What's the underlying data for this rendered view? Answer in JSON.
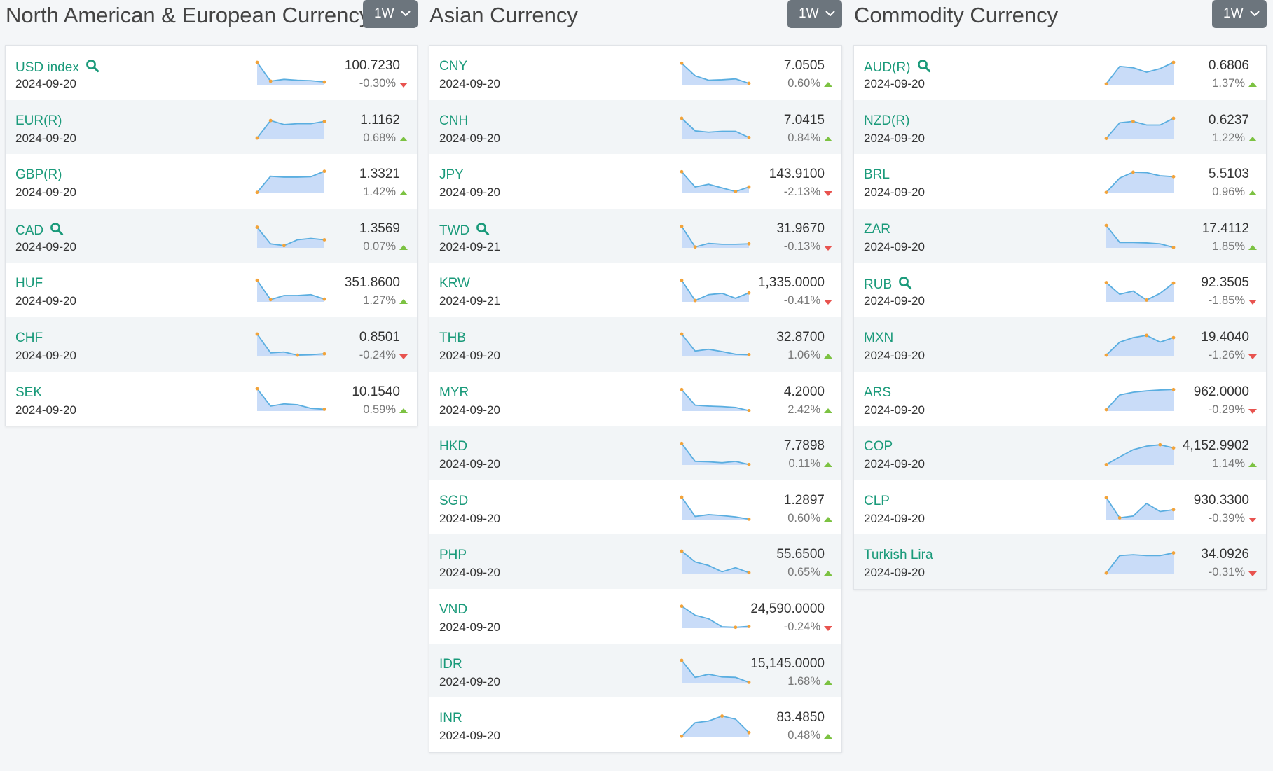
{
  "colors": {
    "link": "#1a9a7a",
    "up": "#7cc242",
    "down": "#e8534f",
    "button": "#6c757d",
    "spark_line": "#5aaee0",
    "spark_fill": "#c9dcf8",
    "spark_dot": "#f2a33a"
  },
  "columns": [
    {
      "title": "North American & European Currency",
      "period": "1W",
      "rows": [
        {
          "name": "USD index",
          "search": true,
          "date": "2024-09-20",
          "value": "100.7230",
          "change": "-0.30%",
          "dir": "down",
          "spark": [
            5,
            0.8,
            1.2,
            1,
            0.9,
            0.6
          ],
          "spark_marks": [
            0,
            1,
            5
          ]
        },
        {
          "name": "EUR(R)",
          "search": false,
          "date": "2024-09-20",
          "value": "1.1162",
          "change": "0.68%",
          "dir": "up",
          "spark": [
            0.3,
            4.2,
            3.3,
            3.5,
            3.5,
            4
          ],
          "spark_marks": [
            0,
            1,
            5
          ]
        },
        {
          "name": "GBP(R)",
          "search": false,
          "date": "2024-09-20",
          "value": "1.3321",
          "change": "1.42%",
          "dir": "up",
          "spark": [
            0.2,
            3.8,
            3.6,
            3.6,
            3.7,
            4.9
          ],
          "spark_marks": [
            0,
            5
          ]
        },
        {
          "name": "CAD",
          "search": true,
          "date": "2024-09-20",
          "value": "1.3569",
          "change": "0.07%",
          "dir": "up",
          "spark": [
            4.6,
            0.9,
            0.5,
            1.8,
            2.1,
            1.8
          ],
          "spark_marks": [
            0,
            2,
            5
          ]
        },
        {
          "name": "HUF",
          "search": false,
          "date": "2024-09-20",
          "value": "351.8600",
          "change": "1.27%",
          "dir": "up",
          "spark": [
            4.8,
            0.5,
            1.4,
            1.4,
            1.6,
            0.6
          ],
          "spark_marks": [
            0,
            1,
            5
          ]
        },
        {
          "name": "CHF",
          "search": false,
          "date": "2024-09-20",
          "value": "0.8501",
          "change": "-0.24%",
          "dir": "down",
          "spark": [
            5,
            0.8,
            1,
            0.3,
            0.4,
            0.6
          ],
          "spark_marks": [
            0,
            3,
            5
          ]
        },
        {
          "name": "SEK",
          "search": false,
          "date": "2024-09-20",
          "value": "10.1540",
          "change": "0.59%",
          "dir": "up",
          "spark": [
            5,
            1.1,
            1.6,
            1.4,
            0.6,
            0.4
          ],
          "spark_marks": [
            0,
            5
          ]
        }
      ]
    },
    {
      "title": "Asian Currency",
      "period": "1W",
      "rows": [
        {
          "name": "CNY",
          "search": false,
          "date": "2024-09-20",
          "value": "7.0505",
          "change": "0.60%",
          "dir": "up",
          "spark": [
            4.8,
            2,
            1,
            1.1,
            1.3,
            0.3
          ],
          "spark_marks": [
            0,
            5
          ]
        },
        {
          "name": "CNH",
          "search": false,
          "date": "2024-09-20",
          "value": "7.0415",
          "change": "0.84%",
          "dir": "up",
          "spark": [
            4.7,
            1.9,
            1.6,
            1.8,
            1.8,
            0.4
          ],
          "spark_marks": [
            0,
            5
          ]
        },
        {
          "name": "JPY",
          "search": false,
          "date": "2024-09-20",
          "value": "143.9100",
          "change": "-2.13%",
          "dir": "down",
          "spark": [
            4.8,
            1.4,
            2,
            1.2,
            0.4,
            1.4
          ],
          "spark_marks": [
            0,
            4,
            5
          ]
        },
        {
          "name": "TWD",
          "search": true,
          "date": "2024-09-21",
          "value": "31.9670",
          "change": "-0.13%",
          "dir": "down",
          "spark": [
            4.8,
            0.2,
            1,
            0.8,
            0.8,
            0.9
          ],
          "spark_marks": [
            0,
            1,
            5
          ]
        },
        {
          "name": "KRW",
          "search": false,
          "date": "2024-09-21",
          "value": "1,335.0000",
          "change": "-0.41%",
          "dir": "down",
          "spark": [
            4.8,
            0.3,
            1.6,
            1.9,
            0.8,
            2
          ],
          "spark_marks": [
            0,
            1,
            5
          ]
        },
        {
          "name": "THB",
          "search": false,
          "date": "2024-09-20",
          "value": "32.8700",
          "change": "1.06%",
          "dir": "up",
          "spark": [
            5,
            1.2,
            1.6,
            1.1,
            0.5,
            0.4
          ],
          "spark_marks": [
            0,
            5
          ]
        },
        {
          "name": "MYR",
          "search": false,
          "date": "2024-09-20",
          "value": "4.2000",
          "change": "2.42%",
          "dir": "up",
          "spark": [
            4.8,
            1.3,
            1.1,
            1,
            0.8,
            0.1
          ],
          "spark_marks": [
            0,
            5
          ]
        },
        {
          "name": "HKD",
          "search": false,
          "date": "2024-09-20",
          "value": "7.7898",
          "change": "0.11%",
          "dir": "up",
          "spark": [
            4.8,
            0.8,
            0.7,
            0.5,
            0.8,
            0.1
          ],
          "spark_marks": [
            0,
            5
          ]
        },
        {
          "name": "SGD",
          "search": false,
          "date": "2024-09-20",
          "value": "1.2897",
          "change": "0.60%",
          "dir": "up",
          "spark": [
            5,
            0.7,
            1.1,
            0.9,
            0.6,
            0.1
          ],
          "spark_marks": [
            0,
            5
          ]
        },
        {
          "name": "PHP",
          "search": false,
          "date": "2024-09-20",
          "value": "55.6500",
          "change": "0.65%",
          "dir": "up",
          "spark": [
            5,
            2.6,
            1.8,
            0.4,
            1.3,
            0.2
          ],
          "spark_marks": [
            0,
            5
          ]
        },
        {
          "name": "VND",
          "search": false,
          "date": "2024-09-20",
          "value": "24,590.0000",
          "change": "-0.24%",
          "dir": "down",
          "spark": [
            4.9,
            2.9,
            2.1,
            0.3,
            0.2,
            0.4
          ],
          "spark_marks": [
            0,
            4,
            5
          ]
        },
        {
          "name": "IDR",
          "search": false,
          "date": "2024-09-20",
          "value": "15,145.0000",
          "change": "1.68%",
          "dir": "up",
          "spark": [
            5,
            1.2,
            1.9,
            1.3,
            1.2,
            0.1
          ],
          "spark_marks": [
            0,
            5
          ]
        },
        {
          "name": "INR",
          "search": false,
          "date": "2024-09-20",
          "value": "83.4850",
          "change": "0.48%",
          "dir": "up",
          "spark": [
            0.1,
            3.1,
            3.5,
            4.6,
            3.9,
            0.9
          ],
          "spark_marks": [
            0,
            3,
            5
          ]
        }
      ]
    },
    {
      "title": "Commodity Currency",
      "period": "1W",
      "rows": [
        {
          "name": "AUD(R)",
          "search": true,
          "date": "2024-09-20",
          "value": "0.6806",
          "change": "1.37%",
          "dir": "up",
          "spark": [
            0.2,
            4.1,
            3.8,
            2.8,
            3.6,
            5
          ],
          "spark_marks": [
            0,
            5
          ]
        },
        {
          "name": "NZD(R)",
          "search": false,
          "date": "2024-09-20",
          "value": "0.6237",
          "change": "1.22%",
          "dir": "up",
          "spark": [
            0.2,
            3.7,
            4,
            3.2,
            3.2,
            4.7
          ],
          "spark_marks": [
            0,
            2,
            5
          ]
        },
        {
          "name": "BRL",
          "search": false,
          "date": "2024-09-20",
          "value": "5.5103",
          "change": "0.96%",
          "dir": "up",
          "spark": [
            0.2,
            3.4,
            4.7,
            4.6,
            3.9,
            3.7
          ],
          "spark_marks": [
            0,
            2,
            5
          ]
        },
        {
          "name": "ZAR",
          "search": false,
          "date": "2024-09-20",
          "value": "17.4112",
          "change": "1.85%",
          "dir": "up",
          "spark": [
            5,
            1.2,
            1.2,
            1.1,
            0.9,
            0.1
          ],
          "spark_marks": [
            0,
            5
          ]
        },
        {
          "name": "RUB",
          "search": true,
          "date": "2024-09-20",
          "value": "92.3505",
          "change": "-1.85%",
          "dir": "down",
          "spark": [
            4.3,
            1.7,
            2.4,
            0.4,
            1.9,
            4.2
          ],
          "spark_marks": [
            0,
            3,
            5
          ]
        },
        {
          "name": "MXN",
          "search": false,
          "date": "2024-09-20",
          "value": "19.4040",
          "change": "-1.26%",
          "dir": "down",
          "spark": [
            0.3,
            3.2,
            4.2,
            4.7,
            3.2,
            4.2
          ],
          "spark_marks": [
            0,
            3,
            5
          ]
        },
        {
          "name": "ARS",
          "search": false,
          "date": "2024-09-20",
          "value": "962.0000",
          "change": "-0.29%",
          "dir": "down",
          "spark": [
            0.3,
            3.6,
            4.2,
            4.5,
            4.7,
            4.8
          ],
          "spark_marks": [
            0,
            5
          ]
        },
        {
          "name": "COP",
          "search": false,
          "date": "2024-09-20",
          "value": "4,152.9902",
          "change": "1.14%",
          "dir": "up",
          "spark": [
            0.1,
            1.8,
            3.4,
            4.2,
            4.5,
            3.8
          ],
          "spark_marks": [
            0,
            4,
            5
          ]
        },
        {
          "name": "CLP",
          "search": false,
          "date": "2024-09-20",
          "value": "930.3300",
          "change": "-0.39%",
          "dir": "down",
          "spark": [
            4.9,
            0.4,
            0.8,
            3.6,
            1.8,
            2.2
          ],
          "spark_marks": [
            0,
            1,
            5
          ]
        },
        {
          "name": "Turkish Lira",
          "search": false,
          "date": "2024-09-20",
          "value": "34.0926",
          "change": "-0.31%",
          "dir": "down",
          "spark": [
            0.1,
            4,
            4.2,
            4,
            4,
            4.6
          ],
          "spark_marks": [
            0,
            5
          ]
        }
      ]
    }
  ]
}
